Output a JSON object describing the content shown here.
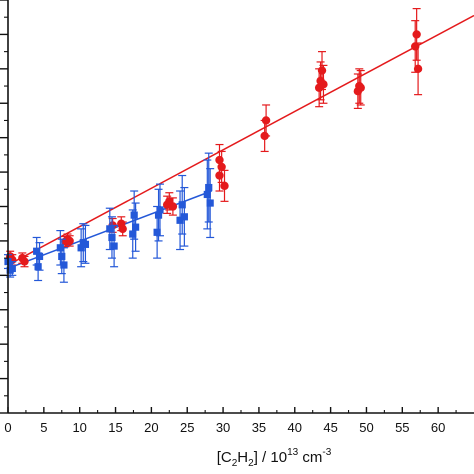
{
  "chart_data": {
    "type": "scatter",
    "xlabel": {
      "parts": [
        {
          "t": "[C",
          "s": ""
        },
        {
          "t": "2",
          "s": "sub"
        },
        {
          "t": "H",
          "s": ""
        },
        {
          "t": "2",
          "s": "sub"
        },
        {
          "t": "] / 10",
          "s": ""
        },
        {
          "t": "13",
          "s": "sup"
        },
        {
          "t": " cm",
          "s": ""
        },
        {
          "t": "-3",
          "s": "sup"
        }
      ]
    },
    "ylabel": "",
    "xlim": [
      0,
      65
    ],
    "ylim": [
      0,
      12
    ],
    "x_ticks": [
      0,
      5,
      10,
      15,
      20,
      25,
      30,
      35,
      40,
      45,
      50,
      55,
      60
    ],
    "x_tick_labels": [
      "0",
      "5",
      "10",
      "15",
      "20",
      "25",
      "30",
      "35",
      "40",
      "45",
      "50",
      "55",
      "60"
    ],
    "y_major_ticks": [
      0,
      1,
      2,
      3,
      4,
      5,
      6,
      7,
      8,
      9,
      10,
      11,
      12
    ],
    "y_minor_ticks": [
      0.5,
      1.5,
      2.5,
      3.5,
      4.5,
      5.5,
      6.5,
      7.5,
      8.5,
      9.5,
      10.5,
      11.5
    ],
    "grid": false,
    "series": [
      {
        "color": "#e41a1c",
        "marker": "circle",
        "points": [
          {
            "x": 0.3,
            "y": 4.55,
            "e": 0.15
          },
          {
            "x": 0.6,
            "y": 4.45,
            "e": 0.15
          },
          {
            "x": 2.0,
            "y": 4.5,
            "e": 0.15
          },
          {
            "x": 2.3,
            "y": 4.4,
            "e": 0.15
          },
          {
            "x": 8.0,
            "y": 4.98,
            "e": 0.15
          },
          {
            "x": 8.3,
            "y": 5.05,
            "e": 0.15
          },
          {
            "x": 8.6,
            "y": 5.0,
            "e": 0.15
          },
          {
            "x": 14.6,
            "y": 5.45,
            "e": 0.2
          },
          {
            "x": 15.8,
            "y": 5.5,
            "e": 0.2
          },
          {
            "x": 16.0,
            "y": 5.35,
            "e": 0.2
          },
          {
            "x": 22.2,
            "y": 6.05,
            "e": 0.25
          },
          {
            "x": 22.5,
            "y": 6.15,
            "e": 0.25
          },
          {
            "x": 23.0,
            "y": 6.0,
            "e": 0.25
          },
          {
            "x": 29.5,
            "y": 7.35,
            "e": 0.45
          },
          {
            "x": 29.5,
            "y": 6.9,
            "e": 0.45
          },
          {
            "x": 29.8,
            "y": 7.15,
            "e": 0.45
          },
          {
            "x": 30.2,
            "y": 6.6,
            "e": 0.45
          },
          {
            "x": 35.8,
            "y": 8.05,
            "e": 0.45
          },
          {
            "x": 36.0,
            "y": 8.5,
            "e": 0.45
          },
          {
            "x": 43.4,
            "y": 9.45,
            "e": 0.55
          },
          {
            "x": 43.6,
            "y": 9.65,
            "e": 0.55
          },
          {
            "x": 43.8,
            "y": 9.95,
            "e": 0.55
          },
          {
            "x": 44.0,
            "y": 9.55,
            "e": 0.55
          },
          {
            "x": 48.8,
            "y": 9.35,
            "e": 0.5
          },
          {
            "x": 49.0,
            "y": 9.5,
            "e": 0.5
          },
          {
            "x": 49.2,
            "y": 9.45,
            "e": 0.5
          },
          {
            "x": 56.8,
            "y": 10.65,
            "e": 0.75
          },
          {
            "x": 57.0,
            "y": 11.0,
            "e": 0.75
          },
          {
            "x": 57.2,
            "y": 10.0,
            "e": 0.75
          }
        ],
        "fit": {
          "x": [
            0,
            65
          ],
          "y": [
            4.3,
            11.55
          ]
        }
      },
      {
        "color": "#2458d8",
        "marker": "square",
        "points": [
          {
            "x": 0.0,
            "y": 4.4,
            "e": 0.2
          },
          {
            "x": 0.3,
            "y": 4.15,
            "e": 0.2
          },
          {
            "x": 0.6,
            "y": 4.2,
            "e": 0.2
          },
          {
            "x": 4.0,
            "y": 4.7,
            "e": 0.4
          },
          {
            "x": 4.2,
            "y": 4.25,
            "e": 0.4
          },
          {
            "x": 4.4,
            "y": 4.55,
            "e": 0.4
          },
          {
            "x": 7.3,
            "y": 4.8,
            "e": 0.5
          },
          {
            "x": 7.5,
            "y": 4.55,
            "e": 0.5
          },
          {
            "x": 7.8,
            "y": 4.3,
            "e": 0.5
          },
          {
            "x": 10.2,
            "y": 4.8,
            "e": 0.55
          },
          {
            "x": 10.5,
            "y": 4.95,
            "e": 0.55
          },
          {
            "x": 10.8,
            "y": 4.9,
            "e": 0.55
          },
          {
            "x": 14.2,
            "y": 5.35,
            "e": 0.6
          },
          {
            "x": 14.5,
            "y": 5.1,
            "e": 0.6
          },
          {
            "x": 14.8,
            "y": 4.85,
            "e": 0.6
          },
          {
            "x": 17.4,
            "y": 5.2,
            "e": 0.7
          },
          {
            "x": 17.6,
            "y": 5.75,
            "e": 0.7
          },
          {
            "x": 17.8,
            "y": 5.4,
            "e": 0.7
          },
          {
            "x": 20.8,
            "y": 5.25,
            "e": 0.75
          },
          {
            "x": 21.0,
            "y": 5.75,
            "e": 0.75
          },
          {
            "x": 21.2,
            "y": 5.9,
            "e": 0.75
          },
          {
            "x": 24.0,
            "y": 5.6,
            "e": 0.85
          },
          {
            "x": 24.3,
            "y": 6.05,
            "e": 0.85
          },
          {
            "x": 24.6,
            "y": 5.7,
            "e": 0.85
          },
          {
            "x": 27.8,
            "y": 6.35,
            "e": 1.0
          },
          {
            "x": 28.0,
            "y": 6.55,
            "e": 1.0
          },
          {
            "x": 28.2,
            "y": 6.1,
            "e": 1.0
          }
        ],
        "fit": {
          "x": [
            0,
            28.4
          ],
          "y": [
            4.2,
            6.45
          ]
        }
      }
    ]
  }
}
